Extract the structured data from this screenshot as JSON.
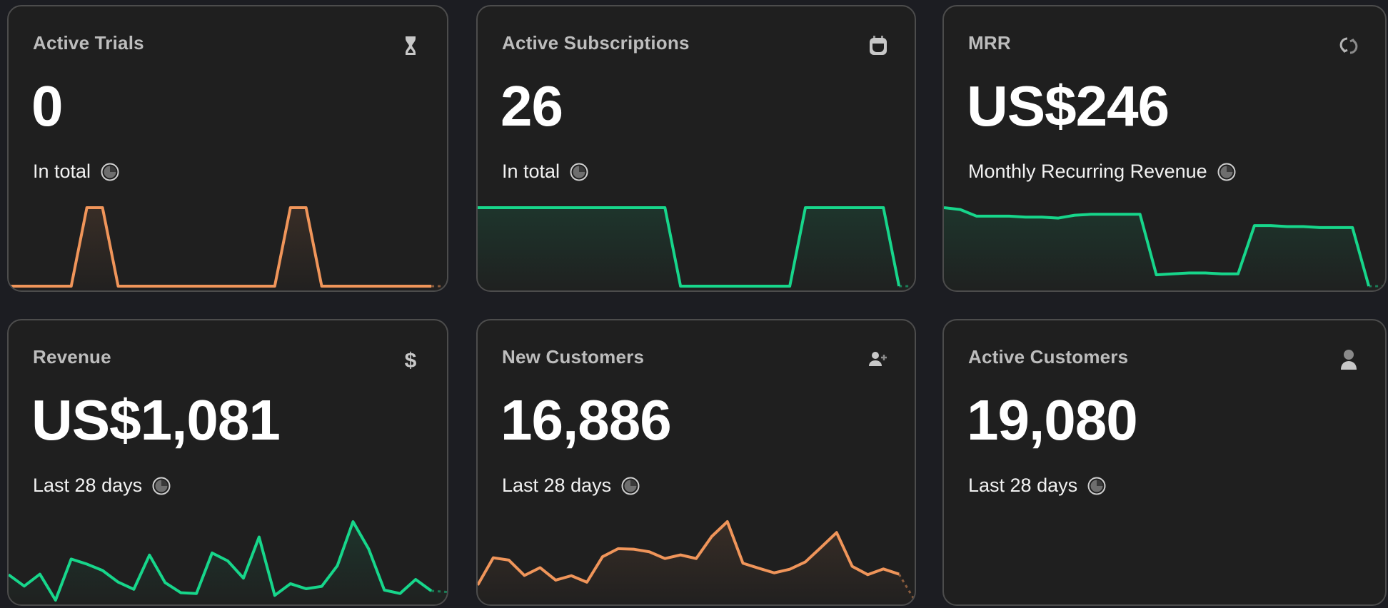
{
  "colors": {
    "green": "#17d68b",
    "orange": "#f0955a",
    "card_bg": "#1f1f1f",
    "page_bg": "#1c1d22"
  },
  "cards": [
    {
      "title": "Active Trials",
      "icon": "hourglass-icon",
      "value": "0",
      "subtitle": "In total",
      "subtitle_icon": "clock-icon",
      "color": "orange"
    },
    {
      "title": "Active Subscriptions",
      "icon": "calendar-icon",
      "value": "26",
      "subtitle": "In total",
      "subtitle_icon": "clock-icon",
      "color": "green"
    },
    {
      "title": "MRR",
      "icon": "refresh-icon",
      "value": "US$246",
      "subtitle": "Monthly Recurring Revenue",
      "subtitle_icon": "clock-icon",
      "color": "green"
    },
    {
      "title": "Revenue",
      "icon": "dollar-icon",
      "value": "US$1,081",
      "subtitle": "Last 28 days",
      "subtitle_icon": "clock-icon",
      "color": "green"
    },
    {
      "title": "New Customers",
      "icon": "user-plus-icon",
      "value": "16,886",
      "subtitle": "Last 28 days",
      "subtitle_icon": "clock-icon",
      "color": "orange"
    },
    {
      "title": "Active Customers",
      "icon": "user-icon",
      "value": "19,080",
      "subtitle": "Last 28 days",
      "subtitle_icon": "clock-icon",
      "color": "green"
    }
  ],
  "chart_data": [
    {
      "type": "area",
      "card": "Active Trials",
      "values": [
        0,
        0,
        0,
        0,
        0,
        1,
        1,
        0,
        0,
        0,
        0,
        0,
        0,
        0,
        0,
        0,
        0,
        0,
        1,
        1,
        0,
        0,
        0,
        0,
        0,
        0,
        0,
        0,
        0
      ],
      "last_segment_dashed": true
    },
    {
      "type": "area",
      "card": "Active Subscriptions",
      "values": [
        1,
        1,
        1,
        1,
        1,
        1,
        1,
        1,
        1,
        1,
        1,
        1,
        1,
        0,
        0,
        0,
        0,
        0,
        0,
        0,
        0,
        1,
        1,
        1,
        1,
        1,
        1,
        0,
        0
      ],
      "last_segment_dashed": true
    },
    {
      "type": "area",
      "card": "MRR",
      "values": [
        88,
        86,
        79,
        79,
        79,
        78,
        78,
        77,
        80,
        81,
        81,
        81,
        81,
        17,
        18,
        19,
        19,
        18,
        18,
        69,
        69,
        68,
        68,
        67,
        67,
        67,
        5,
        5
      ],
      "last_segment_dashed": true
    },
    {
      "type": "area",
      "card": "Revenue",
      "values": [
        128,
        85,
        130,
        32,
        187,
        168,
        144,
        100,
        73,
        202,
        98,
        60,
        57,
        210,
        180,
        115,
        270,
        50,
        94,
        75,
        84,
        162,
        328,
        225,
        70,
        57,
        110,
        67,
        63
      ],
      "last_segment_dashed": true
    },
    {
      "type": "area",
      "card": "New Customers",
      "values": [
        98,
        203,
        194,
        135,
        165,
        117,
        134,
        109,
        207,
        238,
        236,
        226,
        200,
        214,
        200,
        285,
        342,
        182,
        163,
        145,
        159,
        187,
        243,
        300,
        170,
        138,
        160,
        140,
        40
      ],
      "last_segment_dashed": true
    }
  ]
}
